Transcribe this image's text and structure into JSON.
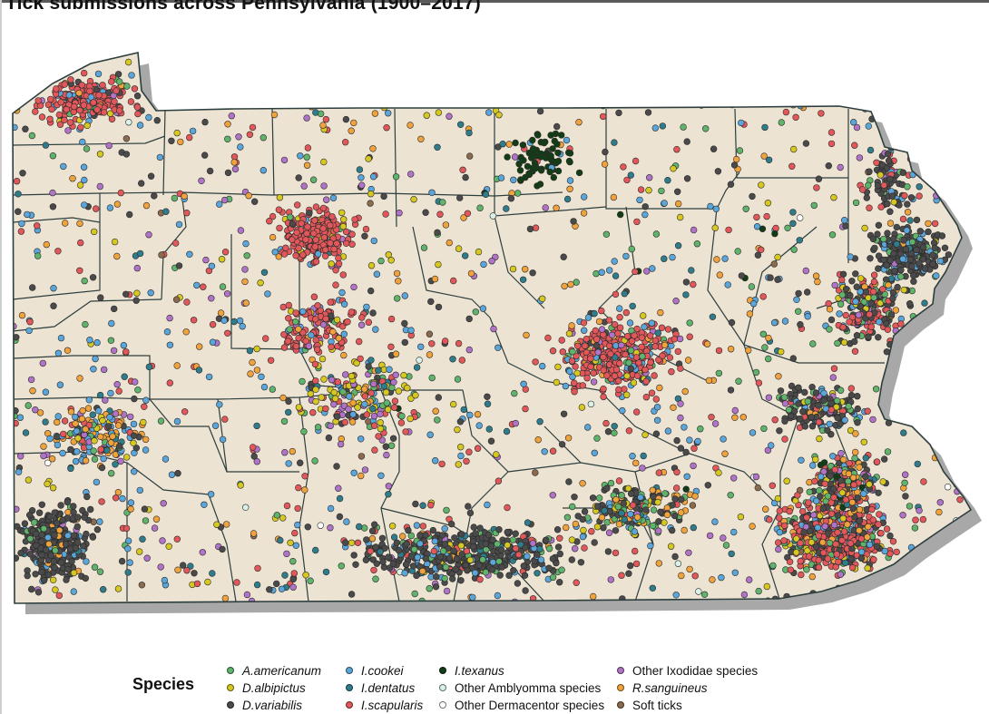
{
  "title": "Tick submissions across Pennsylvania (1900–2017)",
  "map": {
    "land_color": "#ede3d2",
    "border_color": "#2c3e3e",
    "shadow_color": "#a8a8a8"
  },
  "legend": {
    "title": "Species",
    "items": [
      {
        "label": "A.americanum",
        "color": "#5fb36b",
        "italic": true
      },
      {
        "label": "D.albipictus",
        "color": "#d6c820",
        "italic": true
      },
      {
        "label": "D.variabilis",
        "color": "#4a4a4a",
        "italic": true
      },
      {
        "label": "I.cookei",
        "color": "#5aa6da",
        "italic": true
      },
      {
        "label": "I.dentatus",
        "color": "#2f7d8c",
        "italic": true
      },
      {
        "label": "I.scapularis",
        "color": "#e2575a",
        "italic": true
      },
      {
        "label": "I.texanus",
        "color": "#133d16",
        "italic": true
      },
      {
        "label": "Other Amblyomma species",
        "color": "#d8f2ea",
        "italic": false
      },
      {
        "label": "Other Dermacentor species",
        "color": "#ffffff",
        "italic": false
      },
      {
        "label": "Other Ixodidae species",
        "color": "#b173c7",
        "italic": false
      },
      {
        "label": "R.sanguineus",
        "color": "#f0a23c",
        "italic": true
      },
      {
        "label": "Soft ticks",
        "color": "#8b6a4e",
        "italic": false
      }
    ]
  }
}
